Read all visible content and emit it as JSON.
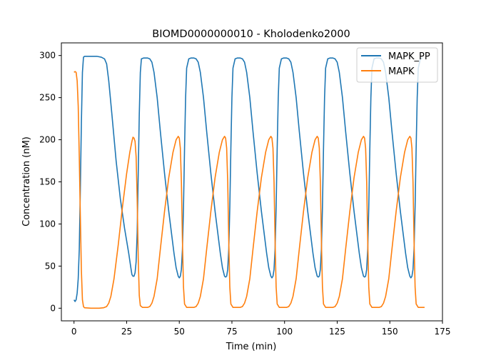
{
  "chart_data": {
    "type": "line",
    "title": "BIOMD0000000010 - Kholodenko2000",
    "xlabel": "Time (min)",
    "ylabel": "Concentration (nM)",
    "xlim": [
      -6,
      175
    ],
    "ylim": [
      -15,
      315
    ],
    "xticks": [
      0,
      25,
      50,
      75,
      100,
      125,
      150,
      175
    ],
    "yticks": [
      0,
      50,
      100,
      150,
      200,
      250,
      300
    ],
    "grid": false,
    "legend_position": "top-right",
    "series": [
      {
        "name": "MAPK_PP",
        "color": "#1f77b4",
        "points": [
          [
            0,
            10
          ],
          [
            0.5,
            8
          ],
          [
            1,
            10
          ],
          [
            1.5,
            18
          ],
          [
            2,
            35
          ],
          [
            2.5,
            70
          ],
          [
            3,
            140
          ],
          [
            3.5,
            220
          ],
          [
            4,
            280
          ],
          [
            4.5,
            298
          ],
          [
            5,
            299
          ],
          [
            8,
            299
          ],
          [
            11,
            299
          ],
          [
            13,
            298
          ],
          [
            14.5,
            296
          ],
          [
            15.5,
            290
          ],
          [
            16.5,
            270
          ],
          [
            18,
            230
          ],
          [
            20,
            175
          ],
          [
            22,
            130
          ],
          [
            24,
            95
          ],
          [
            25,
            80
          ],
          [
            26,
            65
          ],
          [
            27,
            48
          ],
          [
            27.5,
            40
          ],
          [
            28,
            38
          ],
          [
            28.5,
            38
          ],
          [
            29,
            42
          ],
          [
            29.5,
            55
          ],
          [
            30,
            90
          ],
          [
            30.5,
            160
          ],
          [
            31,
            230
          ],
          [
            31.5,
            280
          ],
          [
            32,
            296
          ],
          [
            33,
            297
          ],
          [
            35,
            297
          ],
          [
            36,
            296
          ],
          [
            37,
            292
          ],
          [
            38,
            280
          ],
          [
            39.5,
            250
          ],
          [
            41,
            210
          ],
          [
            43,
            160
          ],
          [
            45,
            115
          ],
          [
            46.5,
            85
          ],
          [
            47.5,
            65
          ],
          [
            48.5,
            48
          ],
          [
            49.5,
            38
          ],
          [
            50,
            36
          ],
          [
            50.5,
            38
          ],
          [
            51,
            46
          ],
          [
            51.5,
            70
          ],
          [
            52,
            120
          ],
          [
            52.5,
            190
          ],
          [
            53,
            250
          ],
          [
            53.5,
            285
          ],
          [
            54.5,
            296
          ],
          [
            55.5,
            297
          ],
          [
            57,
            297
          ],
          [
            58,
            296
          ],
          [
            59,
            292
          ],
          [
            60,
            280
          ],
          [
            61.5,
            250
          ],
          [
            63,
            210
          ],
          [
            65,
            160
          ],
          [
            67,
            115
          ],
          [
            68.5,
            85
          ],
          [
            69.5,
            65
          ],
          [
            70.5,
            48
          ],
          [
            71.5,
            38
          ],
          [
            72,
            37
          ],
          [
            72.5,
            38
          ],
          [
            73,
            46
          ],
          [
            73.5,
            70
          ],
          [
            74,
            120
          ],
          [
            74.5,
            190
          ],
          [
            75,
            250
          ],
          [
            75.5,
            285
          ],
          [
            76.5,
            296
          ],
          [
            77.5,
            297
          ],
          [
            79,
            297
          ],
          [
            80,
            296
          ],
          [
            81,
            292
          ],
          [
            82,
            280
          ],
          [
            83.5,
            250
          ],
          [
            85,
            210
          ],
          [
            87,
            160
          ],
          [
            89,
            115
          ],
          [
            90.5,
            85
          ],
          [
            91.5,
            65
          ],
          [
            92.5,
            48
          ],
          [
            93.5,
            38
          ],
          [
            94,
            36
          ],
          [
            94.5,
            38
          ],
          [
            95,
            46
          ],
          [
            95.5,
            70
          ],
          [
            96,
            120
          ],
          [
            96.5,
            190
          ],
          [
            97,
            250
          ],
          [
            97.5,
            285
          ],
          [
            98.5,
            296
          ],
          [
            99.5,
            297
          ],
          [
            101,
            297
          ],
          [
            102,
            296
          ],
          [
            103,
            292
          ],
          [
            104,
            280
          ],
          [
            105.5,
            250
          ],
          [
            107,
            210
          ],
          [
            109,
            160
          ],
          [
            111,
            115
          ],
          [
            112.5,
            85
          ],
          [
            113.5,
            65
          ],
          [
            114.5,
            48
          ],
          [
            115.5,
            38
          ],
          [
            116,
            37
          ],
          [
            116.5,
            38
          ],
          [
            117,
            46
          ],
          [
            117.5,
            70
          ],
          [
            118,
            120
          ],
          [
            118.5,
            190
          ],
          [
            119,
            250
          ],
          [
            119.5,
            285
          ],
          [
            120.5,
            296
          ],
          [
            121.5,
            297
          ],
          [
            123,
            297
          ],
          [
            124,
            296
          ],
          [
            125,
            292
          ],
          [
            126,
            280
          ],
          [
            127.5,
            250
          ],
          [
            129,
            210
          ],
          [
            131,
            160
          ],
          [
            133,
            115
          ],
          [
            134.5,
            85
          ],
          [
            135.5,
            65
          ],
          [
            136.5,
            48
          ],
          [
            137.5,
            38
          ],
          [
            138,
            37
          ],
          [
            138.5,
            38
          ],
          [
            139,
            46
          ],
          [
            139.5,
            70
          ],
          [
            140,
            120
          ],
          [
            140.5,
            190
          ],
          [
            141,
            250
          ],
          [
            141.5,
            285
          ],
          [
            142.5,
            296
          ],
          [
            143.5,
            297
          ],
          [
            145,
            297
          ],
          [
            146,
            296
          ],
          [
            147,
            292
          ],
          [
            148,
            280
          ],
          [
            149.5,
            250
          ],
          [
            151,
            210
          ],
          [
            153,
            160
          ],
          [
            155,
            115
          ],
          [
            156.5,
            85
          ],
          [
            157.5,
            65
          ],
          [
            158.5,
            48
          ],
          [
            159.5,
            38
          ],
          [
            160,
            36
          ],
          [
            160.5,
            38
          ],
          [
            161,
            46
          ],
          [
            161.5,
            70
          ],
          [
            162,
            120
          ],
          [
            162.5,
            190
          ],
          [
            163,
            250
          ],
          [
            163.5,
            285
          ],
          [
            164.5,
            296
          ],
          [
            165.5,
            297
          ]
        ]
      },
      {
        "name": "MAPK",
        "color": "#ff7f0e",
        "points": [
          [
            0,
            280
          ],
          [
            0.5,
            281
          ],
          [
            1,
            280
          ],
          [
            1.5,
            270
          ],
          [
            2,
            240
          ],
          [
            2.5,
            180
          ],
          [
            3,
            110
          ],
          [
            3.5,
            45
          ],
          [
            4,
            10
          ],
          [
            4.5,
            2
          ],
          [
            5,
            0.5
          ],
          [
            8,
            0
          ],
          [
            12,
            0
          ],
          [
            14,
            0.5
          ],
          [
            15.5,
            2
          ],
          [
            16.5,
            6
          ],
          [
            17.5,
            14
          ],
          [
            19,
            35
          ],
          [
            21,
            75
          ],
          [
            23,
            120
          ],
          [
            25,
            160
          ],
          [
            26.5,
            185
          ],
          [
            27.5,
            198
          ],
          [
            28,
            203
          ],
          [
            28.5,
            202
          ],
          [
            29,
            198
          ],
          [
            29.5,
            180
          ],
          [
            30,
            130
          ],
          [
            30.5,
            60
          ],
          [
            31,
            15
          ],
          [
            31.5,
            3
          ],
          [
            32.5,
            1
          ],
          [
            35,
            1
          ],
          [
            36,
            2
          ],
          [
            37,
            6
          ],
          [
            38,
            14
          ],
          [
            39.5,
            35
          ],
          [
            41,
            70
          ],
          [
            43,
            115
          ],
          [
            45,
            155
          ],
          [
            47,
            185
          ],
          [
            48.5,
            200
          ],
          [
            49.5,
            204
          ],
          [
            50,
            202
          ],
          [
            50.5,
            190
          ],
          [
            51,
            150
          ],
          [
            51.5,
            80
          ],
          [
            52,
            25
          ],
          [
            52.5,
            5
          ],
          [
            53.5,
            1
          ],
          [
            57,
            1
          ],
          [
            58,
            2
          ],
          [
            59,
            6
          ],
          [
            60,
            14
          ],
          [
            61.5,
            35
          ],
          [
            63,
            70
          ],
          [
            65,
            115
          ],
          [
            67,
            155
          ],
          [
            69,
            185
          ],
          [
            70.5,
            200
          ],
          [
            71.5,
            204
          ],
          [
            72,
            202
          ],
          [
            72.5,
            190
          ],
          [
            73,
            150
          ],
          [
            73.5,
            80
          ],
          [
            74,
            25
          ],
          [
            74.5,
            5
          ],
          [
            75.5,
            1
          ],
          [
            79,
            1
          ],
          [
            80,
            2
          ],
          [
            81,
            6
          ],
          [
            82,
            14
          ],
          [
            83.5,
            35
          ],
          [
            85,
            70
          ],
          [
            87,
            115
          ],
          [
            89,
            155
          ],
          [
            91,
            185
          ],
          [
            92.5,
            200
          ],
          [
            93.5,
            204
          ],
          [
            94,
            202
          ],
          [
            94.5,
            190
          ],
          [
            95,
            150
          ],
          [
            95.5,
            80
          ],
          [
            96,
            25
          ],
          [
            96.5,
            5
          ],
          [
            97.5,
            1
          ],
          [
            101,
            1
          ],
          [
            102,
            2
          ],
          [
            103,
            6
          ],
          [
            104,
            14
          ],
          [
            105.5,
            35
          ],
          [
            107,
            70
          ],
          [
            109,
            115
          ],
          [
            111,
            155
          ],
          [
            113,
            185
          ],
          [
            114.5,
            200
          ],
          [
            115.5,
            204
          ],
          [
            116,
            202
          ],
          [
            116.5,
            190
          ],
          [
            117,
            150
          ],
          [
            117.5,
            80
          ],
          [
            118,
            25
          ],
          [
            118.5,
            5
          ],
          [
            119.5,
            1
          ],
          [
            123,
            1
          ],
          [
            124,
            2
          ],
          [
            125,
            6
          ],
          [
            126,
            14
          ],
          [
            127.5,
            35
          ],
          [
            129,
            70
          ],
          [
            131,
            115
          ],
          [
            133,
            155
          ],
          [
            135,
            185
          ],
          [
            136.5,
            200
          ],
          [
            137.5,
            204
          ],
          [
            138,
            202
          ],
          [
            138.5,
            190
          ],
          [
            139,
            150
          ],
          [
            139.5,
            80
          ],
          [
            140,
            25
          ],
          [
            140.5,
            5
          ],
          [
            141.5,
            1
          ],
          [
            145,
            1
          ],
          [
            146,
            2
          ],
          [
            147,
            6
          ],
          [
            148,
            14
          ],
          [
            149.5,
            35
          ],
          [
            151,
            70
          ],
          [
            153,
            115
          ],
          [
            155,
            155
          ],
          [
            157,
            185
          ],
          [
            158.5,
            200
          ],
          [
            159.5,
            204
          ],
          [
            160,
            202
          ],
          [
            160.5,
            190
          ],
          [
            161,
            150
          ],
          [
            161.5,
            80
          ],
          [
            162,
            25
          ],
          [
            162.5,
            5
          ],
          [
            163.5,
            1
          ],
          [
            166.5,
            1
          ]
        ]
      }
    ]
  }
}
